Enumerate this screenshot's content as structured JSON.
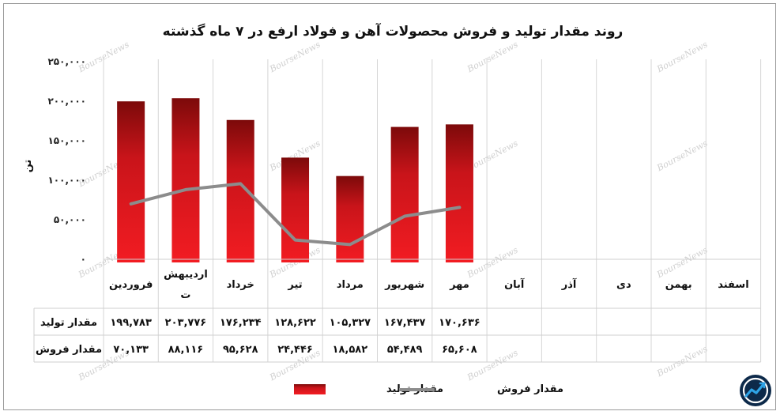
{
  "chart_data": {
    "type": "bar",
    "title": "روند مقدار تولید و فروش محصولات آهن و فولاد ارفع در ۷ ماه گذشته",
    "ylabel": "تن",
    "ylim": [
      0,
      250000
    ],
    "y_ticks": [
      "۰",
      "۵۰,۰۰۰",
      "۱۰۰,۰۰۰",
      "۱۵۰,۰۰۰",
      "۲۰۰,۰۰۰",
      "۲۵۰,۰۰۰"
    ],
    "grid": true,
    "legend_position": "bottom",
    "categories": [
      "فروردین",
      "اردیبهشت",
      "خرداد",
      "تیر",
      "مرداد",
      "شهریور",
      "مهر",
      "آبان",
      "آذر",
      "دی",
      "بهمن",
      "اسفند"
    ],
    "category_label_lines": [
      [
        "فروردین"
      ],
      [
        "اردیبهش",
        "ت"
      ],
      [
        "خرداد"
      ],
      [
        "تیر"
      ],
      [
        "مرداد"
      ],
      [
        "شهریور"
      ],
      [
        "مهر"
      ],
      [
        "آبان"
      ],
      [
        "آذر"
      ],
      [
        "دی"
      ],
      [
        "بهمن"
      ],
      [
        "اسفند"
      ]
    ],
    "series": [
      {
        "name": "مقدار تولید",
        "type": "bar",
        "color": "#e0191a",
        "values": [
          199783,
          203776,
          176234,
          128622,
          105327,
          167437,
          170636,
          null,
          null,
          null,
          null,
          null
        ],
        "labels": [
          "۱۹۹,۷۸۳",
          "۲۰۳,۷۷۶",
          "۱۷۶,۲۳۴",
          "۱۲۸,۶۲۲",
          "۱۰۵,۳۲۷",
          "۱۶۷,۴۳۷",
          "۱۷۰,۶۳۶",
          "",
          "",
          "",
          "",
          ""
        ]
      },
      {
        "name": "مقدار فروش",
        "type": "line",
        "color": "#8c8c8c",
        "values": [
          70133,
          88116,
          95628,
          24446,
          18582,
          54489,
          65608,
          null,
          null,
          null,
          null,
          null
        ],
        "labels": [
          "۷۰,۱۳۳",
          "۸۸,۱۱۶",
          "۹۵,۶۲۸",
          "۲۴,۴۴۶",
          "۱۸,۵۸۲",
          "۵۴,۴۸۹",
          "۶۵,۶۰۸",
          "",
          "",
          "",
          "",
          ""
        ]
      }
    ]
  },
  "watermark": "BourseNews",
  "logo_icon": "boursenews-logo-icon"
}
